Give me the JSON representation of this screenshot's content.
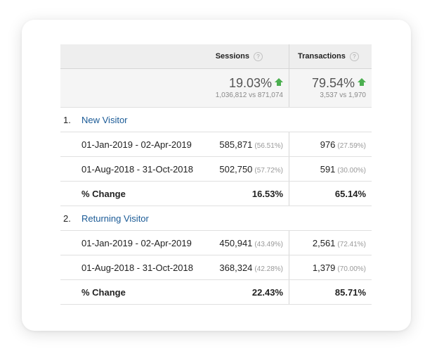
{
  "header": {
    "sessions_label": "Sessions",
    "transactions_label": "Transactions",
    "help_glyph": "?"
  },
  "totals": {
    "sessions_change": "19.03%",
    "sessions_compare": "1,036,812 vs 871,074",
    "transactions_change": "79.54%",
    "transactions_compare": "3,537 vs 1,970",
    "trend_icon": "arrow-up-icon",
    "trend_color": "#4caf50"
  },
  "segments": [
    {
      "number": "1.",
      "name": "New Visitor",
      "rows": [
        {
          "range": "01-Jan-2019 - 02-Apr-2019",
          "sessions": "585,871",
          "sessions_pct": "(56.51%)",
          "transactions": "976",
          "transactions_pct": "(27.59%)"
        },
        {
          "range": "01-Aug-2018 - 31-Oct-2018",
          "sessions": "502,750",
          "sessions_pct": "(57.72%)",
          "transactions": "591",
          "transactions_pct": "(30.00%)"
        }
      ],
      "change": {
        "label": "% Change",
        "sessions": "16.53%",
        "transactions": "65.14%"
      }
    },
    {
      "number": "2.",
      "name": "Returning Visitor",
      "rows": [
        {
          "range": "01-Jan-2019 - 02-Apr-2019",
          "sessions": "450,941",
          "sessions_pct": "(43.49%)",
          "transactions": "2,561",
          "transactions_pct": "(72.41%)"
        },
        {
          "range": "01-Aug-2018 - 31-Oct-2018",
          "sessions": "368,324",
          "sessions_pct": "(42.28%)",
          "transactions": "1,379",
          "transactions_pct": "(70.00%)"
        }
      ],
      "change": {
        "label": "% Change",
        "sessions": "22.43%",
        "transactions": "85.71%"
      }
    }
  ],
  "colors": {
    "link": "#1a5a96",
    "header_bg": "#eeeeee",
    "totals_bg": "#f5f5f5"
  }
}
